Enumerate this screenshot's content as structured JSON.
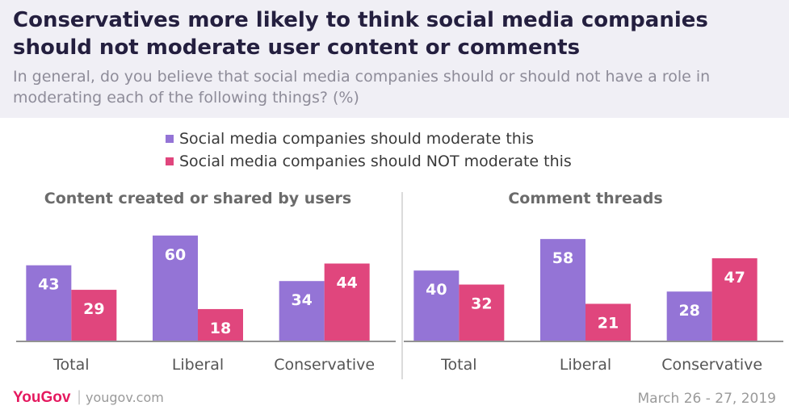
{
  "header": {
    "title": "Conservatives more likely to think social media companies should not moderate user content or comments",
    "subtitle": "In general, do you believe that social media companies should or should not have a role in moderating each of the following things? (%)"
  },
  "colors": {
    "moderate": "#9474d6",
    "not_moderate": "#e0467d"
  },
  "chart_data": {
    "type": "bar",
    "legend_position": "top",
    "grid": false,
    "ylim": [
      0,
      70
    ],
    "series_names": [
      "Social media companies should moderate this",
      "Social media companies should NOT moderate this"
    ],
    "panels": [
      {
        "title": "Content created or shared by users",
        "categories": [
          "Total",
          "Liberal",
          "Conservative"
        ],
        "series": [
          {
            "name": "Social media companies should moderate this",
            "values": [
              43,
              60,
              34
            ]
          },
          {
            "name": "Social media companies should NOT moderate this",
            "values": [
              29,
              18,
              44
            ]
          }
        ]
      },
      {
        "title": "Comment threads",
        "categories": [
          "Total",
          "Liberal",
          "Conservative"
        ],
        "series": [
          {
            "name": "Social media companies should moderate this",
            "values": [
              40,
              58,
              28
            ]
          },
          {
            "name": "Social media companies should NOT moderate this",
            "values": [
              32,
              21,
              47
            ]
          }
        ]
      }
    ]
  },
  "footer": {
    "logo": "YouGov",
    "separator": "|",
    "url": "yougov.com",
    "date": "March 26 - 27, 2019"
  }
}
